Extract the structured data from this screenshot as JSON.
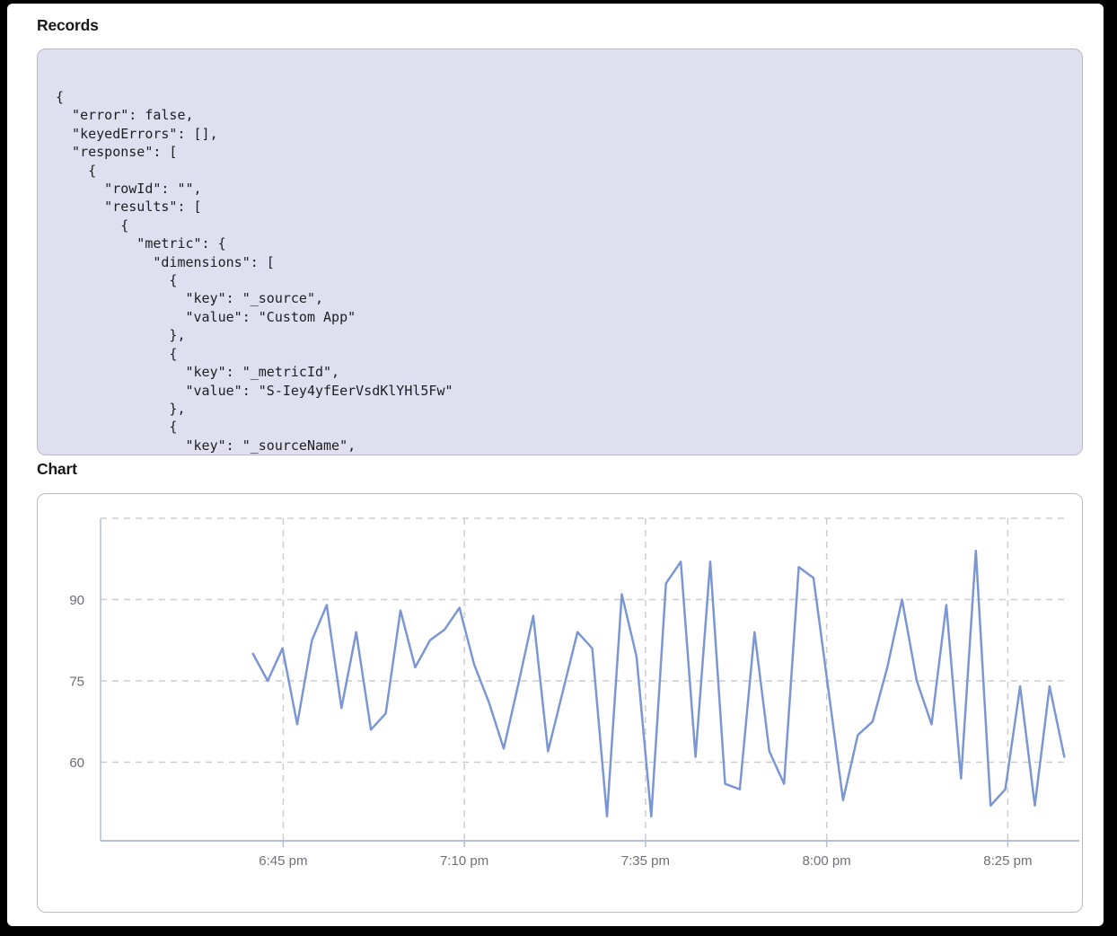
{
  "records": {
    "title": "Records",
    "code_lines": [
      "{",
      "  \"error\": false,",
      "  \"keyedErrors\": [],",
      "  \"response\": [",
      "    {",
      "      \"rowId\": \"\",",
      "      \"results\": [",
      "        {",
      "          \"metric\": {",
      "            \"dimensions\": [",
      "              {",
      "                \"key\": \"_source\",",
      "                \"value\": \"Custom App\"",
      "              },",
      "              {",
      "                \"key\": \"_metricId\",",
      "                \"value\": \"S-Iey4yfEerVsdKlYHl5Fw\"",
      "              },",
      "              {",
      "                \"key\": \"_sourceName\","
    ]
  },
  "chart": {
    "title": "Chart"
  },
  "colors": {
    "code_background": "#e0dff0",
    "card_border": "#b9bac9",
    "axis": "#b4bdd9",
    "gridline": "#cdcdcd",
    "series_line": "#7b97d3"
  },
  "chart_data": {
    "type": "line",
    "title": "Chart",
    "xlabel": "",
    "ylabel": "",
    "legend": null,
    "grid": "dashed",
    "x_tick_labels": [
      "6:45 pm",
      "7:10 pm",
      "7:35 pm",
      "8:00 pm",
      "8:25 pm"
    ],
    "y_tick_labels": [
      "90",
      "75",
      "60"
    ],
    "y_gridlines": [
      105,
      90,
      75,
      60
    ],
    "ylim": [
      45.5,
      105
    ],
    "series_color": "#7b97d3",
    "start_time_estimate": "6:41 pm",
    "interval_minutes": 2,
    "values": [
      80,
      75,
      81,
      67,
      82.5,
      89,
      70,
      84,
      66,
      69,
      88,
      77.5,
      82.5,
      84.5,
      88.5,
      78,
      71,
      62.5,
      74.5,
      87,
      62,
      73,
      84,
      81,
      50,
      91,
      79.5,
      50,
      93,
      97,
      61,
      97,
      56,
      55,
      84,
      62,
      56,
      96,
      94,
      73.5,
      53,
      65,
      67.5,
      77.5,
      90,
      75,
      67,
      89,
      57,
      99,
      52,
      55,
      74,
      52,
      74,
      61
    ]
  }
}
